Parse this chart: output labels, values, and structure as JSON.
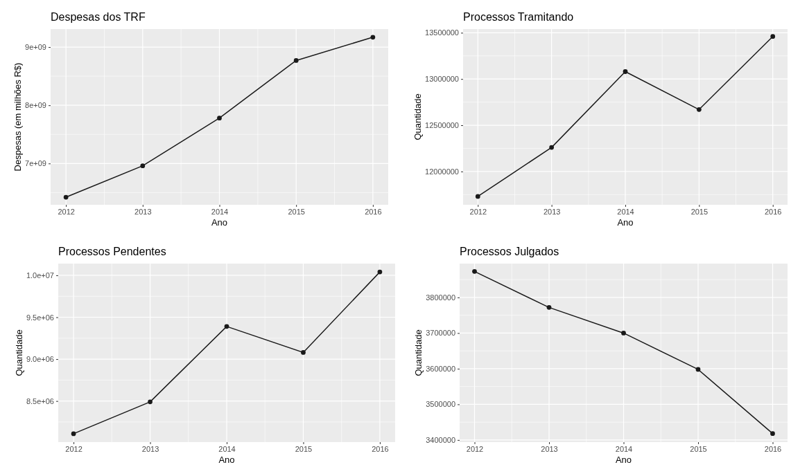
{
  "chart_data": [
    {
      "type": "line",
      "title": "Despesas dos TRF",
      "xlabel": "Ano",
      "ylabel": "Despesas (em milhões R$)",
      "x": [
        2012,
        2013,
        2014,
        2015,
        2016
      ],
      "series": [
        {
          "color": "#1a1a1a",
          "values": [
            6420000000,
            6960000000,
            7780000000,
            8770000000,
            9170000000
          ]
        }
      ],
      "xlim": [
        2011.8,
        2016.2
      ],
      "xticks": [
        2012,
        2013,
        2014,
        2015,
        2016
      ],
      "ylim": [
        6290000000,
        9310000000
      ],
      "yticks": [
        {
          "value": 7000000000,
          "label": "7e+09"
        },
        {
          "value": 8000000000,
          "label": "8e+09"
        },
        {
          "value": 9000000000,
          "label": "9e+09"
        }
      ],
      "grid": true,
      "marker": "circle",
      "line_style": "solid"
    },
    {
      "type": "line",
      "title": "Processos Tramitando",
      "xlabel": "Ano",
      "ylabel": "Quantidade",
      "x": [
        2012,
        2013,
        2014,
        2015,
        2016
      ],
      "series": [
        {
          "color": "#1a1a1a",
          "values": [
            11730000,
            12260000,
            13080000,
            12670000,
            13460000
          ]
        }
      ],
      "xlim": [
        2011.8,
        2016.2
      ],
      "xticks": [
        2012,
        2013,
        2014,
        2015,
        2016
      ],
      "ylim": [
        11640000,
        13540000
      ],
      "yticks": [
        12000000,
        12500000,
        13000000,
        13500000
      ],
      "grid": true,
      "marker": "circle",
      "line_style": "solid"
    },
    {
      "type": "line",
      "title": "Processos Pendentes",
      "xlabel": "Ano",
      "ylabel": "Quantidade",
      "x": [
        2012,
        2013,
        2014,
        2015,
        2016
      ],
      "series": [
        {
          "color": "#1a1a1a",
          "values": [
            8110000,
            8490000,
            9390000,
            9080000,
            10040000
          ]
        }
      ],
      "xlim": [
        2011.8,
        2016.2
      ],
      "xticks": [
        2012,
        2013,
        2014,
        2015,
        2016
      ],
      "ylim": [
        8010000,
        10140000
      ],
      "yticks": [
        {
          "value": 8500000,
          "label": "8.5e+06"
        },
        {
          "value": 9000000,
          "label": "9.0e+06"
        },
        {
          "value": 9500000,
          "label": "9.5e+06"
        },
        {
          "value": 10000000,
          "label": "1.0e+07"
        }
      ],
      "grid": true,
      "marker": "circle",
      "line_style": "solid"
    },
    {
      "type": "line",
      "title": "Processos Julgados",
      "xlabel": "Ano",
      "ylabel": "Quantidade",
      "x": [
        2012,
        2013,
        2014,
        2015,
        2016
      ],
      "series": [
        {
          "color": "#1a1a1a",
          "values": [
            3873000,
            3772000,
            3700000,
            3598000,
            3418000
          ]
        }
      ],
      "xlim": [
        2011.8,
        2016.2
      ],
      "xticks": [
        2012,
        2013,
        2014,
        2015,
        2016
      ],
      "ylim": [
        3394000,
        3895000
      ],
      "yticks": [
        3400000,
        3500000,
        3600000,
        3700000,
        3800000
      ],
      "grid": true,
      "marker": "circle",
      "line_style": "solid"
    }
  ]
}
